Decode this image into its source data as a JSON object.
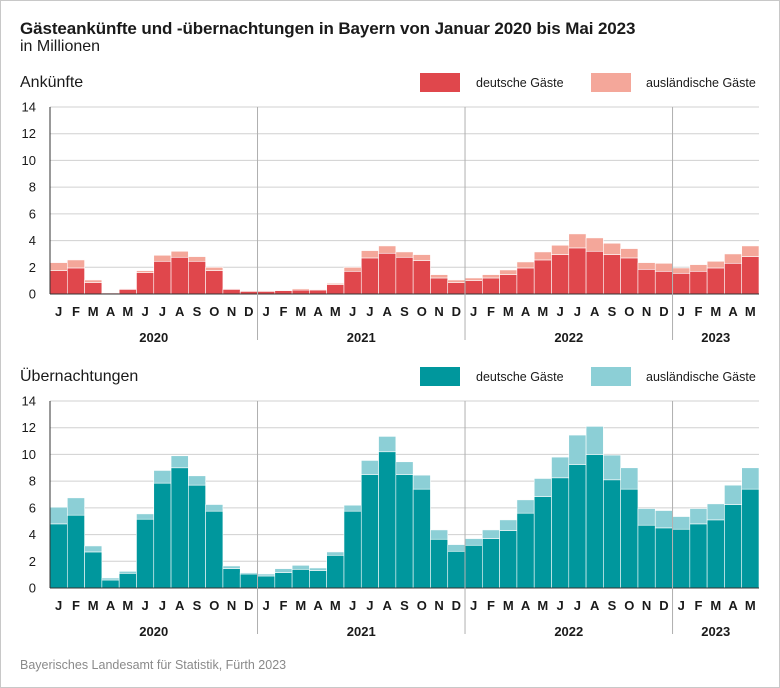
{
  "header": {
    "title": "Gästeankünfte und -übernachtungen in Bayern von Januar 2020 bis Mai 2023",
    "subtitle": "in Millionen"
  },
  "footer": {
    "source": "Bayerisches Landesamt für Statistik, Fürth 2023"
  },
  "colors": {
    "arrivals_domestic": "#e0474c",
    "arrivals_foreign": "#f4a79a",
    "nights_domestic": "#00979d",
    "nights_foreign": "#8ccfd6"
  },
  "chart_data": [
    {
      "type": "bar",
      "stacked": true,
      "title": "Ankünfte",
      "xlabel": "",
      "ylabel": "",
      "ylim": [
        0,
        14
      ],
      "yticks": [
        0,
        2,
        4,
        6,
        8,
        10,
        12,
        14
      ],
      "grid": true,
      "legend_position": "top-right",
      "month_labels": [
        "J",
        "F",
        "M",
        "A",
        "M",
        "J",
        "J",
        "A",
        "S",
        "O",
        "N",
        "D",
        "J",
        "F",
        "M",
        "A",
        "M",
        "J",
        "J",
        "A",
        "S",
        "O",
        "N",
        "D",
        "J",
        "F",
        "M",
        "A",
        "M",
        "J",
        "J",
        "A",
        "S",
        "O",
        "N",
        "D",
        "J",
        "F",
        "M",
        "A",
        "M"
      ],
      "year_groups": [
        {
          "label": "2020",
          "months": 12
        },
        {
          "label": "2021",
          "months": 12
        },
        {
          "label": "2022",
          "months": 12
        },
        {
          "label": "2023",
          "months": 5
        }
      ],
      "series": [
        {
          "name": "deutsche Gäste",
          "values": [
            1.75,
            1.95,
            0.85,
            0.08,
            0.35,
            1.6,
            2.45,
            2.75,
            2.45,
            1.75,
            0.35,
            0.2,
            0.2,
            0.25,
            0.3,
            0.3,
            0.7,
            1.7,
            2.7,
            3.05,
            2.75,
            2.5,
            1.2,
            0.85,
            1.0,
            1.2,
            1.45,
            1.95,
            2.55,
            2.95,
            3.45,
            3.2,
            2.95,
            2.7,
            1.85,
            1.7,
            1.55,
            1.7,
            1.95,
            2.3,
            2.8
          ]
        },
        {
          "name": "ausländische Gäste",
          "values": [
            0.6,
            0.6,
            0.2,
            0.02,
            0.05,
            0.15,
            0.45,
            0.45,
            0.35,
            0.25,
            0.05,
            0.05,
            0.05,
            0.05,
            0.1,
            0.05,
            0.1,
            0.3,
            0.55,
            0.55,
            0.4,
            0.45,
            0.25,
            0.2,
            0.2,
            0.25,
            0.35,
            0.45,
            0.6,
            0.7,
            1.05,
            1.0,
            0.85,
            0.7,
            0.5,
            0.6,
            0.4,
            0.5,
            0.5,
            0.7,
            0.8
          ]
        }
      ]
    },
    {
      "type": "bar",
      "stacked": true,
      "title": "Übernachtungen",
      "xlabel": "",
      "ylabel": "",
      "ylim": [
        0,
        14
      ],
      "yticks": [
        0,
        2,
        4,
        6,
        8,
        10,
        12,
        14
      ],
      "grid": true,
      "legend_position": "top-right",
      "month_labels": [
        "J",
        "F",
        "M",
        "A",
        "M",
        "J",
        "J",
        "A",
        "S",
        "O",
        "N",
        "D",
        "J",
        "F",
        "M",
        "A",
        "M",
        "J",
        "J",
        "A",
        "S",
        "O",
        "N",
        "D",
        "J",
        "F",
        "M",
        "A",
        "M",
        "J",
        "J",
        "A",
        "S",
        "O",
        "N",
        "D",
        "J",
        "F",
        "M",
        "A",
        "M"
      ],
      "year_groups": [
        {
          "label": "2020",
          "months": 12
        },
        {
          "label": "2021",
          "months": 12
        },
        {
          "label": "2022",
          "months": 12
        },
        {
          "label": "2023",
          "months": 5
        }
      ],
      "series": [
        {
          "name": "deutsche Gäste",
          "values": [
            4.8,
            5.45,
            2.7,
            0.6,
            1.1,
            5.15,
            7.85,
            9.0,
            7.7,
            5.75,
            1.45,
            1.05,
            0.9,
            1.15,
            1.4,
            1.3,
            2.45,
            5.75,
            8.5,
            10.2,
            8.5,
            7.4,
            3.65,
            2.75,
            3.2,
            3.7,
            4.3,
            5.6,
            6.85,
            8.25,
            9.25,
            10.0,
            8.1,
            7.4,
            4.7,
            4.5,
            4.4,
            4.8,
            5.1,
            6.25,
            7.4
          ]
        },
        {
          "name": "ausländische Gäste",
          "values": [
            1.25,
            1.3,
            0.45,
            0.15,
            0.15,
            0.4,
            0.95,
            0.9,
            0.7,
            0.5,
            0.2,
            0.1,
            0.15,
            0.3,
            0.3,
            0.2,
            0.25,
            0.45,
            1.05,
            1.15,
            0.95,
            1.05,
            0.7,
            0.5,
            0.5,
            0.65,
            0.8,
            1.0,
            1.35,
            1.55,
            2.2,
            2.1,
            1.85,
            1.6,
            1.25,
            1.3,
            0.95,
            1.15,
            1.2,
            1.45,
            1.6
          ]
        }
      ]
    }
  ]
}
